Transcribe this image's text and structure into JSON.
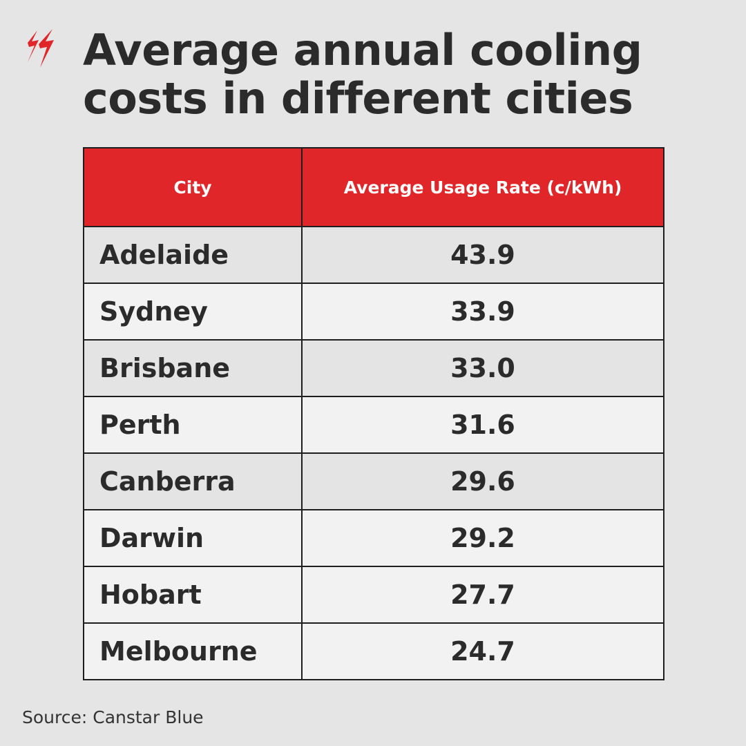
{
  "brand": {
    "logo_icon": "sbs-logo-icon",
    "accent_color": "#e02628"
  },
  "title": "Average annual cooling costs in different cities",
  "chart_data": {
    "type": "table",
    "title": "Average annual cooling costs in different cities",
    "columns": [
      "City",
      "Average Usage Rate (c/kWh)"
    ],
    "rows": [
      {
        "city": "Adelaide",
        "rate": "43.9"
      },
      {
        "city": "Sydney",
        "rate": "33.9"
      },
      {
        "city": "Brisbane",
        "rate": "33.0"
      },
      {
        "city": "Perth",
        "rate": "31.6"
      },
      {
        "city": "Canberra",
        "rate": "29.6"
      },
      {
        "city": "Darwin",
        "rate": "29.2"
      },
      {
        "city": "Hobart",
        "rate": "27.7"
      },
      {
        "city": "Melbourne",
        "rate": "24.7"
      }
    ]
  },
  "source": "Source: Canstar Blue"
}
